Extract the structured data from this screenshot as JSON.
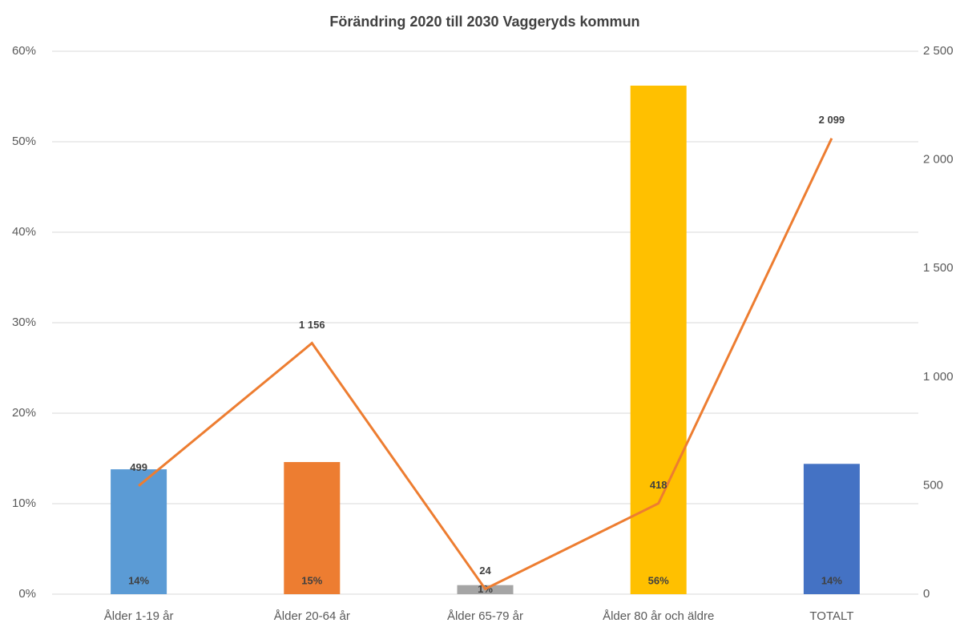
{
  "chart_data": {
    "type": "bar",
    "title": "Förändring 2020 till 2030 Vaggeryds kommun",
    "categories": [
      "Ålder 1-19 år",
      "Ålder 20-64 år",
      "Ålder 65-79 år",
      "Ålder 80 år och äldre",
      "TOTALT"
    ],
    "series": [
      {
        "type": "bar",
        "colors": [
          "#5b9bd5",
          "#ed7d31",
          "#a5a5a5",
          "#ffc000",
          "#4472c4"
        ],
        "values": [
          13.8,
          14.6,
          1.0,
          56.2,
          14.4
        ],
        "value_labels": [
          "14%",
          "15%",
          "1%",
          "56%",
          "14%"
        ]
      },
      {
        "type": "line",
        "axis": "y2",
        "color": "#ed7d31",
        "values": [
          499,
          1156,
          24,
          418,
          2099
        ],
        "value_labels": [
          "499",
          "1 156",
          "24",
          "418",
          "2 099"
        ]
      }
    ],
    "ylim": [
      0,
      60
    ],
    "yticks": [
      {
        "value": 0,
        "label": "0%"
      },
      {
        "value": 10,
        "label": "10%"
      },
      {
        "value": 20,
        "label": "20%"
      },
      {
        "value": 30,
        "label": "30%"
      },
      {
        "value": 40,
        "label": "40%"
      },
      {
        "value": 50,
        "label": "50%"
      },
      {
        "value": 60,
        "label": "60%"
      }
    ],
    "y2lim": [
      0,
      2500
    ],
    "y2ticks": [
      0,
      500,
      {
        "value": 1000,
        "label": "1 000"
      },
      {
        "value": 1500,
        "label": "1 500"
      },
      {
        "value": 2000,
        "label": "2 000"
      },
      {
        "value": 2500,
        "label": "2 500"
      }
    ],
    "grid": true
  }
}
